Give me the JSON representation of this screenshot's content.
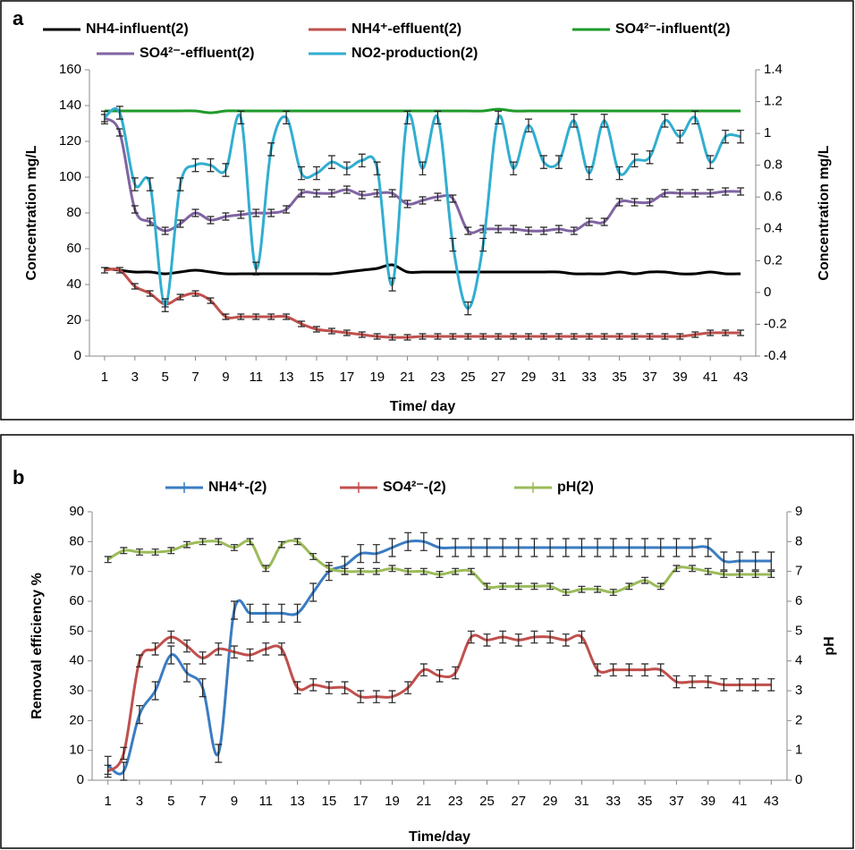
{
  "chart_data": [
    {
      "type": "line",
      "label": "a",
      "xlabel": "Time/ day",
      "ylabel": "Concentration mg/L",
      "y2label": "Concentration mg/L",
      "x": [
        1,
        2,
        3,
        4,
        5,
        6,
        7,
        8,
        9,
        10,
        11,
        12,
        13,
        14,
        15,
        16,
        17,
        18,
        19,
        20,
        21,
        22,
        23,
        24,
        25,
        26,
        27,
        28,
        29,
        30,
        31,
        32,
        33,
        34,
        35,
        36,
        37,
        38,
        39,
        40,
        41,
        42,
        43
      ],
      "xlim": [
        0,
        44
      ],
      "xticks": [
        1,
        3,
        5,
        7,
        9,
        11,
        13,
        15,
        17,
        19,
        21,
        23,
        25,
        27,
        29,
        31,
        33,
        35,
        37,
        39,
        41,
        43
      ],
      "ylim": [
        0,
        160
      ],
      "yticks": [
        0,
        20,
        40,
        60,
        80,
        100,
        120,
        140,
        160
      ],
      "y2lim": [
        -0.4,
        1.4
      ],
      "y2ticks": [
        -0.4,
        -0.2,
        0,
        0.2,
        0.4,
        0.6,
        0.8,
        1,
        1.2,
        1.4
      ],
      "series": [
        {
          "name": "NH4-influent(2)",
          "color": "#000000",
          "values": [
            49,
            48,
            47,
            47,
            46,
            47,
            48,
            47,
            46,
            46,
            46,
            46,
            46,
            46,
            46,
            46,
            47,
            48,
            49,
            51,
            47,
            47,
            47,
            47,
            47,
            47,
            47,
            47,
            47,
            47,
            47,
            46,
            46,
            46,
            47,
            46,
            47,
            47,
            46,
            46,
            47,
            46,
            46
          ]
        },
        {
          "name": "NH4⁺-effluent(2)",
          "color": "#c0504d",
          "values": [
            48,
            48,
            39,
            35,
            29,
            33,
            35,
            31,
            22,
            22,
            22,
            22,
            22,
            18,
            15,
            14,
            13,
            12,
            11,
            10.5,
            10.5,
            11,
            11,
            11,
            11,
            11,
            11,
            11,
            11,
            11,
            11,
            11,
            11,
            11,
            11,
            11,
            11,
            11,
            11,
            12,
            13,
            13,
            13
          ],
          "errors": [
            1.5,
            1.5,
            1.5,
            1.5,
            1.5,
            1.5,
            1.5,
            1.5,
            1.5,
            1.5,
            1.5,
            1.5,
            1.5,
            1.5,
            1.5,
            1.5,
            1.5,
            1.5,
            1.5,
            1.5,
            1.5,
            1.5,
            1.5,
            1.5,
            1.5,
            1.5,
            1.5,
            1.5,
            1.5,
            1.5,
            1.5,
            1.5,
            1.5,
            1.5,
            1.5,
            1.5,
            1.5,
            1.5,
            1.5,
            1.5,
            1.5,
            1.5,
            1.5
          ]
        },
        {
          "name": "SO4²⁻-influent(2)",
          "color": "#1f9a2a",
          "values": [
            137,
            137,
            137,
            137,
            137,
            137,
            137,
            136,
            137,
            137,
            137,
            137,
            137,
            137,
            137,
            137,
            137,
            137,
            137,
            137,
            137,
            137,
            137,
            137,
            137,
            137,
            138,
            137,
            137,
            137,
            137,
            137,
            137,
            137,
            137,
            137,
            137,
            137,
            137,
            137,
            137,
            137,
            137
          ]
        },
        {
          "name": "SO4²⁻-effluent(2)",
          "color": "#8064a2",
          "values": [
            133,
            125,
            82,
            75,
            70,
            74,
            80,
            76,
            78,
            79,
            80,
            80,
            82,
            91,
            91,
            91,
            93,
            90,
            91,
            91,
            85,
            87,
            89,
            88,
            70,
            71,
            71,
            71,
            70,
            70,
            71,
            70,
            75,
            75,
            86,
            86,
            86,
            91,
            91,
            91,
            91,
            92,
            92
          ],
          "errors": [
            2,
            2,
            2,
            2,
            2,
            2,
            2,
            2,
            2,
            2,
            2,
            2,
            2,
            2,
            2,
            2,
            2,
            2,
            2,
            2,
            2,
            2,
            2,
            2,
            2,
            2,
            2,
            2,
            2,
            2,
            2,
            2,
            2,
            2,
            2,
            2,
            2,
            2,
            2,
            2,
            2,
            2,
            2
          ]
        },
        {
          "name": "NO2-production(2)",
          "color": "#31aed0",
          "axis": "y2",
          "values": [
            1.1,
            1.13,
            0.68,
            0.68,
            -0.08,
            0.68,
            0.8,
            0.8,
            0.77,
            1.1,
            0.15,
            0.9,
            1.1,
            0.75,
            0.75,
            0.82,
            0.78,
            0.83,
            0.78,
            0.05,
            1.1,
            0.78,
            1.1,
            0.3,
            -0.1,
            0.3,
            1.1,
            0.78,
            1.05,
            0.82,
            0.82,
            1.08,
            0.75,
            1.08,
            0.75,
            0.83,
            0.85,
            1.08,
            0.98,
            1.1,
            0.82,
            0.98,
            0.98
          ],
          "errors": [
            0.04,
            0.04,
            0.04,
            0.04,
            0.04,
            0.04,
            0.04,
            0.04,
            0.04,
            0.04,
            0.04,
            0.04,
            0.04,
            0.04,
            0.04,
            0.04,
            0.04,
            0.04,
            0.04,
            0.04,
            0.04,
            0.04,
            0.04,
            0.04,
            0.04,
            0.04,
            0.04,
            0.04,
            0.04,
            0.04,
            0.04,
            0.04,
            0.04,
            0.04,
            0.04,
            0.04,
            0.04,
            0.04,
            0.04,
            0.04,
            0.04,
            0.04,
            0.04
          ]
        }
      ]
    },
    {
      "type": "line",
      "label": "b",
      "xlabel": "Time/day",
      "ylabel": "Removal efficiency  %",
      "y2label": "pH",
      "x": [
        1,
        2,
        3,
        4,
        5,
        6,
        7,
        8,
        9,
        10,
        11,
        12,
        13,
        14,
        15,
        16,
        17,
        18,
        19,
        20,
        21,
        22,
        23,
        24,
        25,
        26,
        27,
        28,
        29,
        30,
        31,
        32,
        33,
        34,
        35,
        36,
        37,
        38,
        39,
        40,
        41,
        42,
        43
      ],
      "xlim": [
        0,
        44
      ],
      "xticks": [
        1,
        3,
        5,
        7,
        9,
        11,
        13,
        15,
        17,
        19,
        21,
        23,
        25,
        27,
        29,
        31,
        33,
        35,
        37,
        39,
        41,
        43
      ],
      "ylim": [
        0,
        90
      ],
      "yticks": [
        0,
        10,
        20,
        30,
        40,
        50,
        60,
        70,
        80,
        90
      ],
      "y2lim": [
        0,
        9
      ],
      "y2ticks": [
        0,
        1,
        2,
        3,
        4,
        5,
        6,
        7,
        8,
        9
      ],
      "series": [
        {
          "name": "NH4⁺-(2)",
          "color": "#3a7cc2",
          "values": [
            5,
            3,
            22,
            30,
            42,
            36,
            31,
            9,
            57,
            56,
            56,
            56,
            56,
            63,
            70,
            72,
            76,
            76,
            78,
            80,
            80,
            78,
            78,
            78,
            78,
            78,
            78,
            78,
            78,
            78,
            78,
            78,
            78,
            78,
            78,
            78,
            78,
            78,
            78,
            73.5,
            73.5,
            73.5,
            73.5
          ],
          "errors": [
            3,
            3,
            3,
            3,
            3,
            3,
            3,
            3,
            3,
            3,
            3,
            3,
            3,
            3,
            3,
            3,
            3,
            3,
            3,
            3,
            3,
            3,
            3,
            3,
            3,
            3,
            3,
            3,
            3,
            3,
            3,
            3,
            3,
            3,
            3,
            3,
            3,
            3,
            3,
            3,
            3,
            3,
            3
          ]
        },
        {
          "name": "SO4²⁻-(2)",
          "color": "#c0504d",
          "values": [
            3,
            9,
            40,
            44,
            48,
            45,
            41,
            44,
            43,
            42,
            44,
            44,
            31,
            32,
            31,
            31,
            28,
            28,
            28,
            31,
            37,
            35,
            36,
            48,
            47,
            48,
            47,
            48,
            48,
            47,
            48,
            37,
            37,
            37,
            37,
            37,
            33,
            33,
            33,
            32,
            32,
            32,
            32
          ],
          "errors": [
            2,
            2,
            2,
            2,
            2,
            2,
            2,
            2,
            2,
            2,
            2,
            2,
            2,
            2,
            2,
            2,
            2,
            2,
            2,
            2,
            2,
            2,
            2,
            2,
            2,
            2,
            2,
            2,
            2,
            2,
            2,
            2,
            2,
            2,
            2,
            2,
            2,
            2,
            2,
            2,
            2,
            2,
            2
          ]
        },
        {
          "name": "pH(2)",
          "color": "#9bbb59",
          "axis": "y2",
          "values": [
            7.4,
            7.7,
            7.65,
            7.65,
            7.7,
            7.9,
            8,
            8,
            7.8,
            8,
            7.1,
            7.9,
            8,
            7.5,
            7.1,
            7,
            7,
            7,
            7.1,
            7,
            7,
            6.9,
            7,
            7,
            6.5,
            6.5,
            6.5,
            6.5,
            6.5,
            6.3,
            6.4,
            6.4,
            6.3,
            6.5,
            6.7,
            6.5,
            7.1,
            7.1,
            7,
            6.9,
            6.9,
            6.9,
            6.9
          ],
          "errors": [
            0.1,
            0.1,
            0.1,
            0.1,
            0.1,
            0.1,
            0.1,
            0.1,
            0.1,
            0.1,
            0.1,
            0.1,
            0.1,
            0.1,
            0.1,
            0.1,
            0.1,
            0.1,
            0.1,
            0.1,
            0.1,
            0.1,
            0.1,
            0.1,
            0.1,
            0.1,
            0.1,
            0.1,
            0.1,
            0.1,
            0.1,
            0.1,
            0.1,
            0.1,
            0.1,
            0.1,
            0.1,
            0.1,
            0.1,
            0.1,
            0.1,
            0.1,
            0.1
          ]
        }
      ]
    }
  ]
}
